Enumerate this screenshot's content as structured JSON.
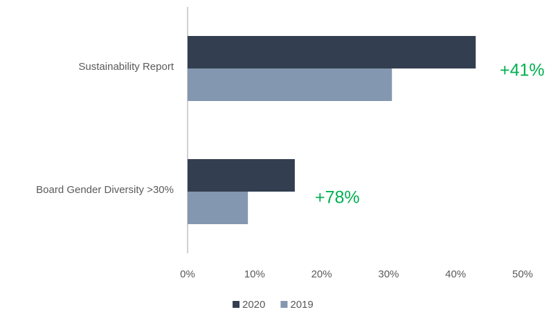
{
  "chart_data": {
    "type": "barh",
    "categories": [
      "Sustainability Report",
      "Board Gender Diversity >30%"
    ],
    "series": [
      {
        "name": "2020",
        "color": "#333f50",
        "values": [
          43,
          16
        ]
      },
      {
        "name": "2019",
        "color": "#8497b0",
        "values": [
          30.5,
          9
        ]
      }
    ],
    "xlim": [
      0,
      50
    ],
    "xticks": [
      {
        "value": 0,
        "label": "0%"
      },
      {
        "value": 10,
        "label": "10%"
      },
      {
        "value": 20,
        "label": "20%"
      },
      {
        "value": 30,
        "label": "30%"
      },
      {
        "value": 40,
        "label": "40%"
      },
      {
        "value": 50,
        "label": "50%"
      }
    ],
    "grid": false,
    "legend": "bottom",
    "annotations": [
      {
        "text": "+41%",
        "color": "#00b050"
      },
      {
        "text": "+78%",
        "color": "#00b050"
      }
    ]
  }
}
